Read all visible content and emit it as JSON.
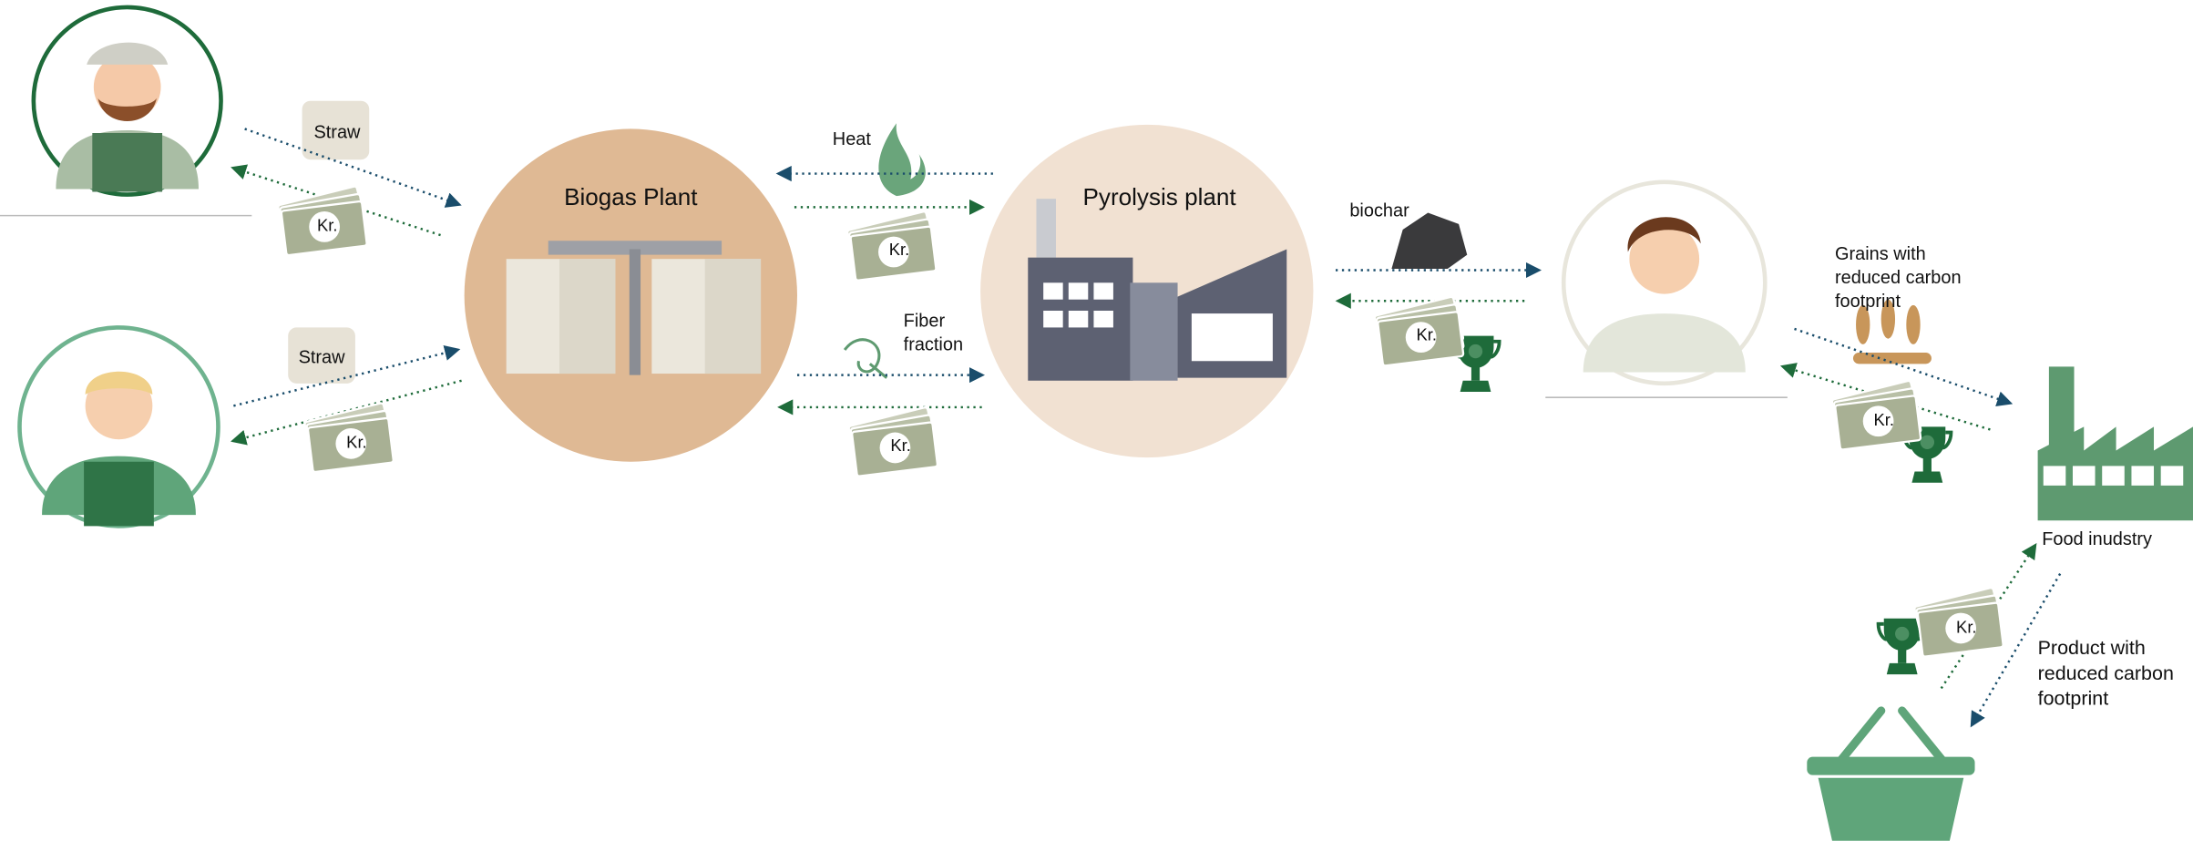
{
  "nodes": [
    {
      "label": "Biogas Plant"
    },
    {
      "label": "Pyrolysis plant"
    },
    {
      "label": "Food inudstry"
    }
  ],
  "flows": [
    {
      "lines": [
        "Straw"
      ]
    },
    {
      "lines": [
        "Straw"
      ]
    },
    {
      "lines": [
        "Heat"
      ]
    },
    {
      "lines": [
        "Fiber",
        "fraction"
      ]
    },
    {
      "lines": [
        "biochar"
      ]
    },
    {
      "lines": [
        "Grains with",
        "reduced carbon",
        "footprint"
      ]
    },
    {
      "lines": [
        "Product with",
        "reduced carbon",
        "footprint"
      ]
    }
  ],
  "payments": [
    {
      "label": "Kr."
    },
    {
      "label": "Kr."
    },
    {
      "label": "Kr."
    },
    {
      "label": "Kr."
    },
    {
      "label": "Kr."
    },
    {
      "label": "Kr."
    },
    {
      "label": "Kr."
    }
  ]
}
